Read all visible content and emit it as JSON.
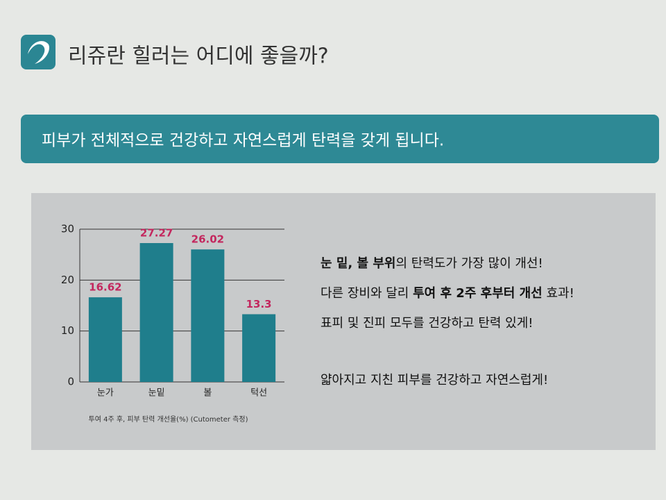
{
  "header": {
    "title": "리쥬란 힐러는 어디에 좋을까?"
  },
  "banner": {
    "text": "피부가 전체적으로 건강하고 자연스럽게 탄력을 갖게 됩니다."
  },
  "chart_data": {
    "type": "bar",
    "categories": [
      "눈가",
      "눈밑",
      "볼",
      "턱선"
    ],
    "values": [
      16.62,
      27.27,
      26.02,
      13.3
    ],
    "color": "#1f7e8c",
    "label_color": "#c3275e",
    "ylim": [
      0,
      30
    ],
    "yticks": [
      0,
      10,
      20,
      30
    ],
    "grid": true,
    "caption": "투여 4주 후, 피부 탄력 개선율(%) (Cutometer 측정)"
  },
  "points": [
    [
      {
        "text": "눈 밑, 볼 부위",
        "bold": true
      },
      {
        "text": "의 탄력도가 가장 많이 개선!",
        "bold": false
      }
    ],
    [
      {
        "text": "다른 장비와 달리 ",
        "bold": false
      },
      {
        "text": "투여 후 2주 후부터 개선",
        "bold": true
      },
      {
        "text": " 효과!",
        "bold": false
      }
    ],
    [
      {
        "text": "표피 및 진피 모두를 건강하고 탄력 있게!",
        "bold": false
      }
    ],
    [
      {
        "text": "얇아지고 지친 피부를 건강하고 자연스럽게!",
        "bold": false
      }
    ]
  ]
}
